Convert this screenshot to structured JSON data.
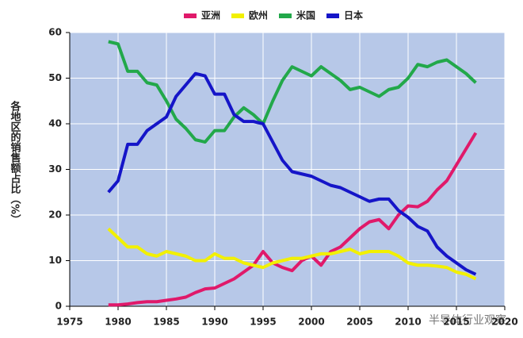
{
  "chart_data": {
    "type": "line",
    "y_label": "各地区的销售额占比（%）",
    "watermark": "半导体行业观察",
    "x": [
      1979,
      1980,
      1981,
      1982,
      1983,
      1984,
      1985,
      1986,
      1987,
      1988,
      1989,
      1990,
      1991,
      1992,
      1993,
      1994,
      1995,
      1996,
      1997,
      1998,
      1999,
      2000,
      2001,
      2002,
      2003,
      2004,
      2005,
      2006,
      2007,
      2008,
      2009,
      2010,
      2011,
      2012,
      2013,
      2014,
      2015,
      2016,
      2017
    ],
    "series": [
      {
        "name": "亚洲",
        "color": "#e0196a",
        "values": [
          0.3,
          0.3,
          0.5,
          0.8,
          1,
          1,
          1.3,
          1.6,
          2,
          3,
          3.8,
          4,
          5,
          6,
          7.5,
          9,
          12,
          9.5,
          8.5,
          7.8,
          10,
          11,
          9,
          12,
          13,
          15,
          17,
          18.5,
          19,
          17,
          20,
          22,
          21.8,
          23,
          25.5,
          27.5,
          31,
          34.5,
          38
        ]
      },
      {
        "name": "欧州",
        "color": "#f2f000",
        "values": [
          17,
          15,
          13,
          13,
          11.5,
          11,
          12,
          11.5,
          11,
          10,
          10,
          11.5,
          10.5,
          10.5,
          9.5,
          9,
          8.5,
          9.5,
          10,
          10.5,
          10.5,
          11,
          11.5,
          11.5,
          12,
          12.5,
          11.5,
          12,
          12,
          12,
          11,
          9.5,
          9,
          9,
          8.8,
          8.5,
          7.5,
          7,
          6
        ]
      },
      {
        "name": "米国",
        "color": "#22a84a",
        "values": [
          58,
          57.5,
          51.5,
          51.5,
          49,
          48.5,
          45,
          41,
          39,
          36.5,
          36,
          38.5,
          38.5,
          41.5,
          43.5,
          42,
          40,
          45,
          49.5,
          52.5,
          51.5,
          50.5,
          52.5,
          51,
          49.5,
          47.5,
          48,
          47,
          46,
          47.5,
          48,
          50,
          53,
          52.5,
          53.5,
          54,
          52.5,
          51,
          49
        ]
      },
      {
        "name": "日本",
        "color": "#1515c8",
        "values": [
          25,
          27.5,
          35.5,
          35.5,
          38.5,
          40,
          41.5,
          46,
          48.5,
          51,
          50.5,
          46.5,
          46.5,
          42,
          40.5,
          40.5,
          40,
          36,
          32,
          29.5,
          29,
          28.5,
          27.5,
          26.5,
          26,
          25,
          24,
          23,
          23.5,
          23.5,
          21,
          19.5,
          17.5,
          16.5,
          13,
          11,
          9.5,
          8,
          7
        ]
      }
    ],
    "xlim": [
      1975,
      2020
    ],
    "xticks": [
      1975,
      1980,
      1985,
      1990,
      1995,
      2000,
      2005,
      2010,
      2015,
      2020
    ],
    "ylim": [
      0,
      60
    ],
    "yticks": [
      0,
      10,
      20,
      30,
      40,
      50,
      60
    ],
    "grid": true,
    "legend": "top"
  }
}
